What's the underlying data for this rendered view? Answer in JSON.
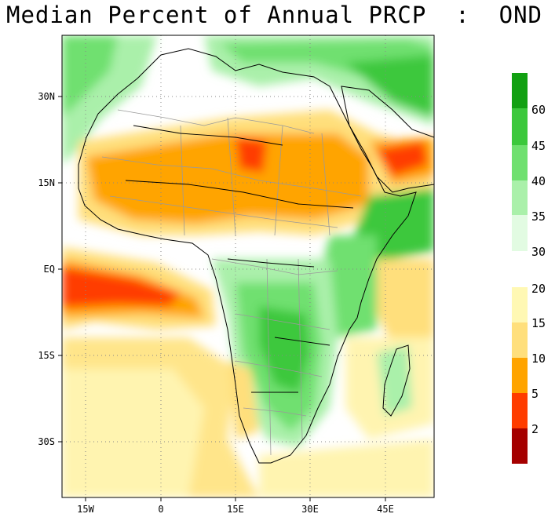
{
  "title": "Median Percent of Annual PRCP  :  OND",
  "map": {
    "lat_labels": [
      "30N",
      "15N",
      "EQ",
      "15S",
      "30S"
    ],
    "lon_labels": [
      "15W",
      "0",
      "15E",
      "30E",
      "45E"
    ],
    "lat_values": [
      30,
      15,
      0,
      -15,
      -30
    ],
    "lon_values": [
      -15,
      0,
      15,
      30,
      45
    ],
    "lon_range": [
      -20,
      53
    ],
    "lat_range": [
      -40,
      40
    ]
  },
  "colorbar": {
    "labels": [
      "60",
      "45",
      "40",
      "35",
      "30",
      "20",
      "15",
      "10",
      "5",
      "2"
    ],
    "colors": {
      "c60": "#12a012",
      "c45": "#3cc83c",
      "c40": "#6fe06f",
      "c35": "#aaf0aa",
      "c30": "#e2fbe2",
      "c20": "#fff8b4",
      "c15": "#ffdf7c",
      "c10": "#ffa400",
      "c5": "#ff3c00",
      "c2": "#a50000"
    }
  },
  "colors": {
    "land_boundary": "#000000",
    "admin_boundary": "#9a9a9a",
    "grid": "#888888"
  }
}
